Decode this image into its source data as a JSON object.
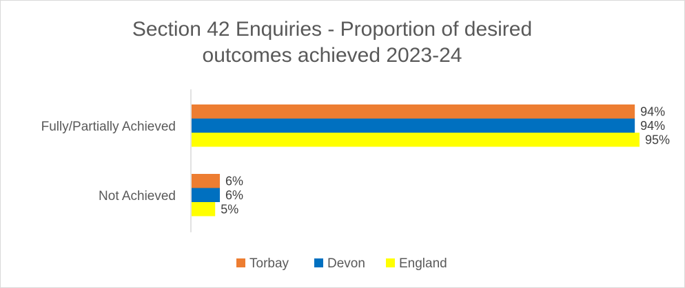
{
  "chart_data": {
    "type": "bar",
    "orientation": "horizontal",
    "title_lines": [
      "Section 42 Enquiries - Proportion of desired",
      "outcomes achieved 2023-24"
    ],
    "categories": [
      "Fully/Partially Achieved",
      "Not Achieved"
    ],
    "series": [
      {
        "name": "Torbay",
        "color": "#ED7D31",
        "values": [
          94,
          6
        ]
      },
      {
        "name": "Devon",
        "color": "#0070C0",
        "values": [
          94,
          6
        ]
      },
      {
        "name": "England",
        "color": "#FFFF00",
        "values": [
          95,
          5
        ]
      }
    ],
    "value_suffix": "%",
    "xlim": [
      0,
      95
    ],
    "grid": false,
    "legend_position": "bottom"
  }
}
